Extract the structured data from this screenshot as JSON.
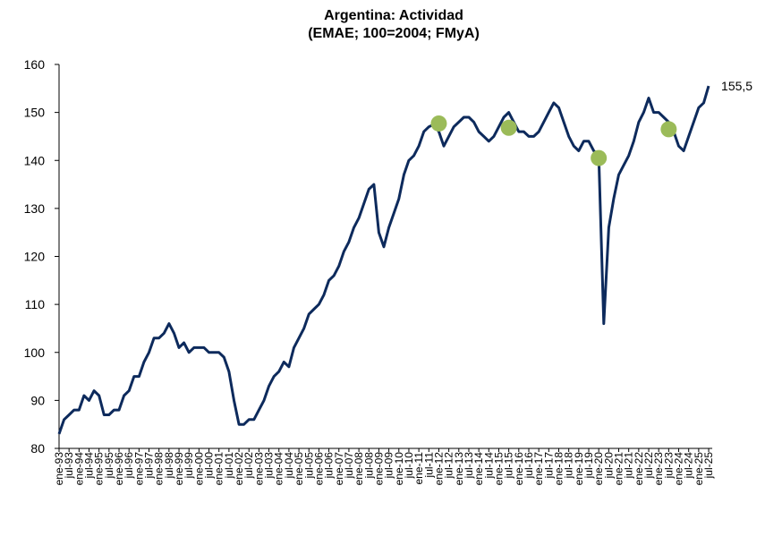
{
  "chart_data": {
    "type": "line",
    "title": "Argentina: Actividad",
    "subtitle": "(EMAE; 100=2004; FMyA)",
    "annotation": "155,5",
    "categories": [
      "ene-93",
      null,
      "jul-93",
      null,
      "ene-94",
      null,
      "jul-94",
      null,
      "ene-95",
      null,
      "jul-95",
      null,
      "ene-96",
      null,
      "jul-96",
      null,
      "ene-97",
      null,
      "jul-97",
      null,
      "ene-98",
      null,
      "jul-98",
      null,
      "ene-99",
      null,
      "jul-99",
      null,
      "ene-00",
      null,
      "jul-00",
      null,
      "ene-01",
      null,
      "jul-01",
      null,
      "ene-02",
      null,
      "jul-02",
      null,
      "ene-03",
      null,
      "jul-03",
      null,
      "ene-04",
      null,
      "jul-04",
      null,
      "ene-05",
      null,
      "jul-05",
      null,
      "ene-06",
      null,
      "jul-06",
      null,
      "ene-07",
      null,
      "jul-07",
      null,
      "ene-08",
      null,
      "jul-08",
      null,
      "ene-09",
      null,
      "jul-09",
      null,
      "ene-10",
      null,
      "jul-10",
      null,
      "ene-11",
      null,
      "jul-11",
      null,
      "ene-12",
      null,
      "jul-12",
      null,
      "ene-13",
      null,
      "jul-13",
      null,
      "ene-14",
      null,
      "jul-14",
      null,
      "ene-15",
      null,
      "jul-15",
      null,
      "ene-16",
      null,
      "jul-16",
      null,
      "ene-17",
      null,
      "jul-17",
      null,
      "ene-18",
      null,
      "jul-18",
      null,
      "ene-19",
      null,
      "jul-19",
      null,
      "ene-20",
      null,
      "jul-20",
      null,
      "ene-21",
      null,
      "jul-21",
      null,
      "ene-22",
      null,
      "jul-22",
      null,
      "ene-23",
      null,
      "jul-23",
      null,
      "ene-24",
      null,
      "jul-24",
      null,
      "ene-25",
      null,
      "jul-25"
    ],
    "series": [
      {
        "color": "#0d2a5c",
        "values": [
          83,
          86,
          87,
          88,
          88,
          91,
          90,
          92,
          91,
          87,
          87,
          88,
          88,
          91,
          92,
          95,
          95,
          98,
          100,
          103,
          103,
          104,
          106,
          104,
          101,
          102,
          100,
          101,
          101,
          101,
          100,
          100,
          100,
          99,
          96,
          90,
          85,
          85,
          86,
          86,
          88,
          90,
          93,
          95,
          96,
          98,
          97,
          101,
          103,
          105,
          108,
          109,
          110,
          112,
          115,
          116,
          118,
          121,
          123,
          126,
          128,
          131,
          134,
          135,
          125,
          122,
          126,
          129,
          132,
          137,
          140,
          141,
          143,
          146,
          147,
          147.5,
          146,
          143,
          145,
          147,
          148,
          149,
          149,
          148,
          146,
          145,
          144,
          145,
          147,
          149,
          150,
          148,
          146,
          146,
          145,
          145,
          146,
          148,
          150,
          152,
          151,
          148,
          145,
          143,
          142,
          144,
          144,
          142,
          141,
          106,
          126,
          132,
          137,
          139,
          141,
          144,
          148,
          150,
          153,
          150,
          150,
          149,
          148,
          146,
          143,
          142,
          145,
          148,
          151,
          152,
          155.5
        ]
      },
      {
        "color": "#9bbb59",
        "values": [
          null,
          null,
          null,
          null,
          null,
          null,
          null,
          null,
          null,
          null,
          null,
          null,
          null,
          null,
          null,
          null,
          null,
          null,
          null,
          null,
          null,
          null,
          null,
          null,
          null,
          null,
          null,
          null,
          null,
          null,
          null,
          null,
          null,
          null,
          null,
          null,
          null,
          null,
          null,
          null,
          null,
          null,
          null,
          null,
          null,
          null,
          null,
          null,
          null,
          null,
          null,
          null,
          null,
          null,
          null,
          null,
          null,
          null,
          null,
          null,
          null,
          null,
          null,
          null,
          null,
          null,
          null,
          null,
          null,
          null,
          null,
          null,
          null,
          null,
          null,
          null,
          147.7,
          null,
          null,
          null,
          null,
          null,
          null,
          null,
          null,
          null,
          null,
          null,
          null,
          null,
          146.8,
          null,
          null,
          null,
          null,
          null,
          null,
          null,
          null,
          null,
          null,
          null,
          null,
          null,
          null,
          null,
          null,
          null,
          140.5,
          null,
          null,
          null,
          null,
          null,
          null,
          null,
          null,
          null,
          null,
          null,
          null,
          null,
          146.5,
          null,
          null,
          null,
          null,
          null,
          null,
          null,
          null
        ]
      }
    ],
    "ylim": [
      80,
      160
    ],
    "yticks": [
      80,
      90,
      100,
      110,
      120,
      130,
      140,
      150,
      160
    ]
  }
}
